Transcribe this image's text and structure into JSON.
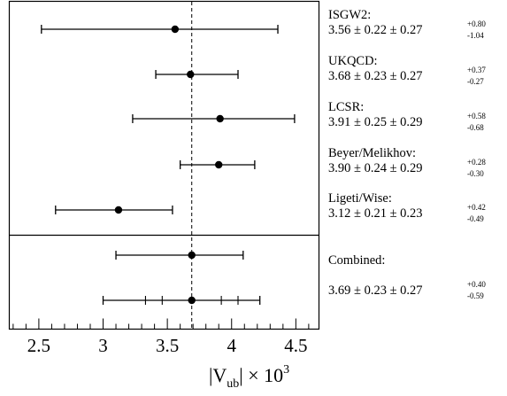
{
  "chart_data": {
    "type": "scatter",
    "xlabel": "|V",
    "xlabel_sub": "ub",
    "xlabel_mid": "| × 10",
    "xlabel_sup": "3",
    "xlim": [
      2.27,
      4.68
    ],
    "xticks": [
      {
        "value": 2.5,
        "label": "2.5"
      },
      {
        "value": 3.0,
        "label": "3"
      },
      {
        "value": 3.5,
        "label": "3.5"
      },
      {
        "value": 4.0,
        "label": "4"
      },
      {
        "value": 4.5,
        "label": "4.5"
      }
    ],
    "reference_line": 3.69,
    "results": [
      {
        "name": "ISGW2:",
        "central": 3.56,
        "low": 2.52,
        "high": 4.36,
        "value_text": "3.56 ± 0.22 ± 0.27",
        "up": "+0.80",
        "down": "-1.04"
      },
      {
        "name": "UKQCD:",
        "central": 3.68,
        "low": 3.41,
        "high": 4.05,
        "value_text": "3.68 ± 0.23 ± 0.27",
        "up": "+0.37",
        "down": "-0.27"
      },
      {
        "name": "LCSR:",
        "central": 3.91,
        "low": 3.23,
        "high": 4.49,
        "value_text": "3.91 ± 0.25 ± 0.29",
        "up": "+0.58",
        "down": "-0.68"
      },
      {
        "name": "Beyer/Melikhov:",
        "central": 3.9,
        "low": 3.6,
        "high": 4.18,
        "value_text": "3.90 ± 0.24 ± 0.29",
        "up": "+0.28",
        "down": "-0.30"
      },
      {
        "name": "Ligeti/Wise:",
        "central": 3.12,
        "low": 2.63,
        "high": 3.54,
        "value_text": "3.12 ± 0.21 ± 0.23",
        "up": "+0.42",
        "down": "-0.49"
      }
    ],
    "combined": {
      "name": "Combined:",
      "value_text": "3.69 ± 0.23 ± 0.27",
      "up": "+0.40",
      "down": "-0.59",
      "bars": [
        {
          "central": 3.69,
          "low": 3.1,
          "high": 4.09
        },
        {
          "central": 3.69,
          "low": 3.0,
          "high": 4.22,
          "inner_ticks": [
            3.33,
            3.46,
            3.92,
            4.05
          ]
        }
      ]
    }
  }
}
